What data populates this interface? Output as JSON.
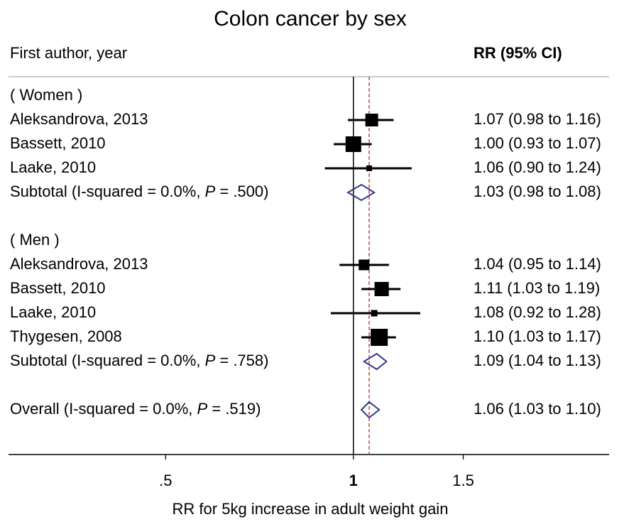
{
  "chart_data": {
    "type": "forest",
    "title": "Colon cancer by sex",
    "column_headers": {
      "study": "First author, year",
      "estimate": "RR (95% CI)"
    },
    "x_label": "RR for 5kg increase in adult weight gain",
    "x_log": true,
    "xlim": [
      0.28,
      2.57
    ],
    "xticks": [
      {
        "value": 0.5,
        "label": ".5"
      },
      1,
      1.5
    ],
    "null_line": 1,
    "marker_color": "#000000",
    "diamond_color": "#333a8a",
    "overall_line_color": "#b03030",
    "rows": [
      {
        "kind": "group",
        "label": "( Women )"
      },
      {
        "kind": "study",
        "label": "Aleksandrova, 2013",
        "rr": 1.07,
        "lo": 0.98,
        "hi": 1.16,
        "weight": 15.0,
        "ci_label": "1.07 (0.98 to 1.16)"
      },
      {
        "kind": "study",
        "label": "Bassett, 2010",
        "rr": 1.0,
        "lo": 0.93,
        "hi": 1.07,
        "weight": 22.5,
        "ci_label": "1.00 (0.93 to 1.07)"
      },
      {
        "kind": "study",
        "label": "Laake, 2010",
        "rr": 1.06,
        "lo": 0.9,
        "hi": 1.24,
        "weight": 3.0,
        "ci_label": "1.06 (0.90 to 1.24)"
      },
      {
        "kind": "subtotal",
        "label_parts": [
          "Subtotal  (I-squared = 0.0%, ",
          "P",
          " = .500)"
        ],
        "rr": 1.03,
        "lo": 0.98,
        "hi": 1.08,
        "ci_label": "1.03 (0.98 to 1.08)"
      },
      {
        "kind": "group",
        "label": "( Men )"
      },
      {
        "kind": "study",
        "label": "Aleksandrova, 2013",
        "rr": 1.04,
        "lo": 0.95,
        "hi": 1.14,
        "weight": 10.4,
        "ci_label": "1.04 (0.95 to 1.14)"
      },
      {
        "kind": "study",
        "label": "Bassett, 2010",
        "rr": 1.11,
        "lo": 1.03,
        "hi": 1.19,
        "weight": 18.6,
        "ci_label": "1.11 (1.03 to 1.19)"
      },
      {
        "kind": "study",
        "label": "Laake, 2010",
        "rr": 1.08,
        "lo": 0.92,
        "hi": 1.28,
        "weight": 3.8,
        "ci_label": "1.08 (0.92 to 1.28)"
      },
      {
        "kind": "study",
        "label": "Thygesen, 2008",
        "rr": 1.1,
        "lo": 1.03,
        "hi": 1.17,
        "weight": 26.7,
        "ci_label": "1.10 (1.03 to 1.17)"
      },
      {
        "kind": "subtotal",
        "label_parts": [
          "Subtotal  (I-squared = 0.0%, ",
          "P",
          " = .758)"
        ],
        "rr": 1.09,
        "lo": 1.04,
        "hi": 1.13,
        "ci_label": "1.09 (1.04 to 1.13)"
      },
      {
        "kind": "overall",
        "label_parts": [
          "Overall  (I-squared = 0.0%, ",
          "P",
          " = .519)"
        ],
        "rr": 1.06,
        "lo": 1.03,
        "hi": 1.1,
        "ci_label": "1.06 (1.03 to 1.10)"
      }
    ]
  }
}
